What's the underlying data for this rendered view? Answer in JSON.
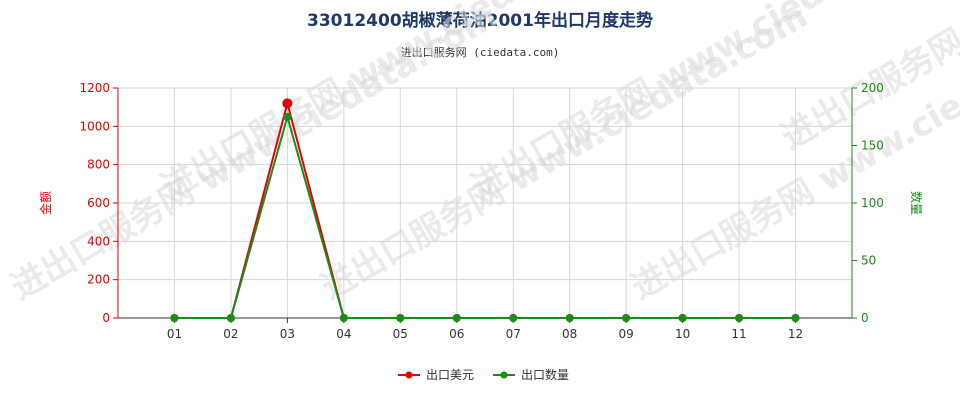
{
  "title": "33012400胡椒薄荷油2001年出口月度走势",
  "subtitle": "进出口服务网 (ciedata.com)",
  "watermark": "进出口服务网 www.ciedata.com",
  "chart_data": {
    "type": "line",
    "categories": [
      "01",
      "02",
      "03",
      "04",
      "05",
      "06",
      "07",
      "08",
      "09",
      "10",
      "11",
      "12"
    ],
    "series": [
      {
        "name": "出口美元",
        "axis": "left",
        "color": "#e60000",
        "values": [
          0,
          0,
          1120,
          0,
          0,
          0,
          0,
          0,
          0,
          0,
          0,
          0
        ]
      },
      {
        "name": "出口数量",
        "axis": "right",
        "color": "#1a8c1a",
        "values": [
          0,
          0,
          175,
          0,
          0,
          0,
          0,
          0,
          0,
          0,
          0,
          0
        ]
      }
    ],
    "ylabel_left": "金额",
    "ylabel_right": "数量",
    "ylim_left": [
      0,
      1200
    ],
    "yticks_left": [
      "0",
      "200",
      "400",
      "600",
      "800",
      "1000",
      "1200"
    ],
    "ylim_right": [
      0,
      200
    ],
    "yticks_right": [
      "0",
      "50",
      "100",
      "150",
      "200"
    ],
    "grid": true,
    "legend_position": "bottom-center"
  }
}
